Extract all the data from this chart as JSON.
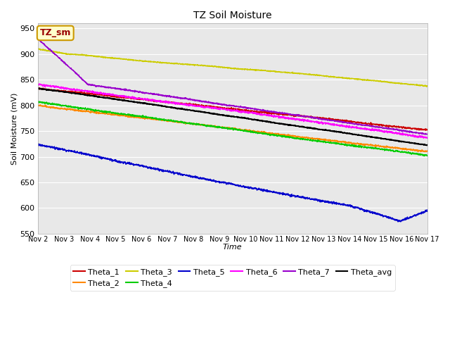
{
  "title": "TZ Soil Moisture",
  "xlabel": "Time",
  "ylabel": "Soil Moisture (mV)",
  "ylim": [
    550,
    960
  ],
  "yticks": [
    550,
    600,
    650,
    700,
    750,
    800,
    850,
    900,
    950
  ],
  "x_labels": [
    "Nov 2",
    "Nov 3",
    "Nov 4",
    "Nov 5",
    "Nov 6",
    "Nov 7",
    "Nov 8",
    "Nov 9",
    "Nov 10",
    "Nov 11",
    "Nov 12",
    "Nov 13",
    "Nov 14",
    "Nov 15",
    "Nov 16",
    "Nov 17"
  ],
  "background_color": "#e8e8e8",
  "legend_box_color": "#ffffcc",
  "legend_box_edge": "#cc9900",
  "TZ_sm_label": "TZ_sm",
  "TZ_sm_text_color": "#990000",
  "series": {
    "Theta_1": {
      "color": "#cc0000"
    },
    "Theta_2": {
      "color": "#ff8800"
    },
    "Theta_3": {
      "color": "#cccc00"
    },
    "Theta_4": {
      "color": "#00cc00"
    },
    "Theta_5": {
      "color": "#0000cc"
    },
    "Theta_6": {
      "color": "#ff00ff"
    },
    "Theta_7": {
      "color": "#9900cc"
    },
    "Theta_avg": {
      "color": "#000000"
    }
  }
}
